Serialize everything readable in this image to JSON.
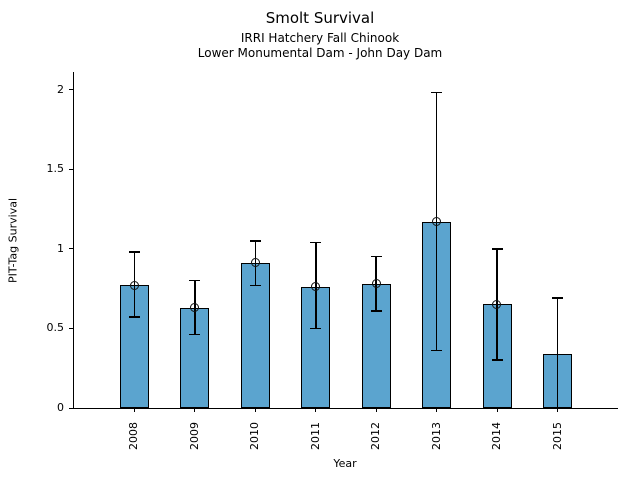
{
  "chart_data": {
    "type": "bar",
    "title": "Smolt Survival",
    "subtitle1": "IRRI Hatchery Fall Chinook",
    "subtitle2": "Lower Monumental Dam - John Day Dam",
    "xlabel": "Year",
    "ylabel": "PIT-Tag Survival",
    "categories": [
      "2008",
      "2009",
      "2010",
      "2011",
      "2012",
      "2013",
      "2014",
      "2015"
    ],
    "values": [
      0.77,
      0.63,
      0.91,
      0.76,
      0.78,
      1.17,
      0.65,
      0.34
    ],
    "error_low": [
      0.57,
      0.46,
      0.77,
      0.5,
      0.61,
      0.36,
      0.3,
      0.0
    ],
    "error_high": [
      0.98,
      0.8,
      1.05,
      1.04,
      0.95,
      1.98,
      1.0,
      0.69
    ],
    "markers": [
      true,
      true,
      true,
      true,
      true,
      true,
      true,
      false
    ],
    "cap_low": [
      true,
      true,
      true,
      true,
      true,
      true,
      true,
      false
    ],
    "yticks": [
      0,
      0.5,
      1,
      1.5,
      2
    ],
    "ylim": [
      0,
      2.11
    ],
    "grid": false,
    "legend": null,
    "bar_color": "#5BA4CF",
    "bar_edge_color": "#000000",
    "error_color": "#000000",
    "text_color": "#000000"
  }
}
